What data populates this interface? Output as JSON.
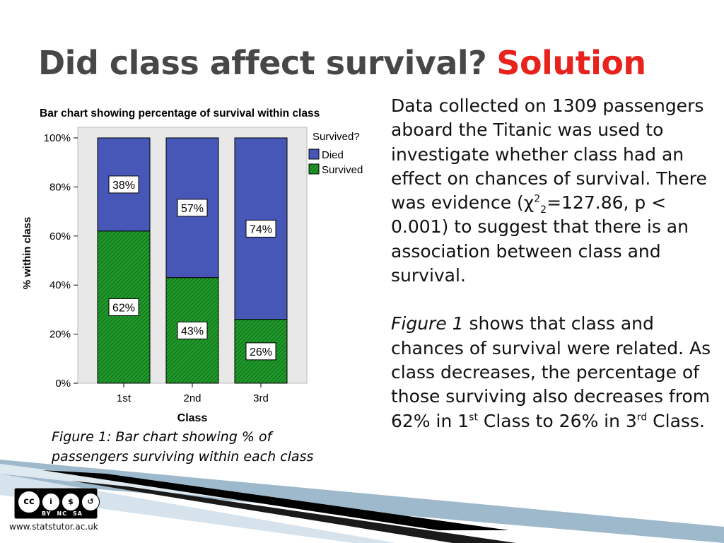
{
  "slide": {
    "title_main": "Did class affect survival?",
    "title_accent": "Solution",
    "accent_color": "#e8221c"
  },
  "chart_data": {
    "type": "bar",
    "stacked": true,
    "title": "Bar chart showing percentage of survival within class",
    "xlabel": "Class",
    "ylabel": "% within class",
    "categories": [
      "1st",
      "2nd",
      "3rd"
    ],
    "yticks": [
      "0%",
      "20%",
      "40%",
      "60%",
      "80%",
      "100%"
    ],
    "ylim": [
      0,
      100
    ],
    "legend_title": "Survived?",
    "legend_position": "top-right",
    "series": [
      {
        "name": "Survived",
        "values": [
          62,
          43,
          26
        ],
        "labels": [
          "62%",
          "43%",
          "26%"
        ],
        "color": "#1f9a2a"
      },
      {
        "name": "Died",
        "values": [
          38,
          57,
          74
        ],
        "labels": [
          "38%",
          "57%",
          "74%"
        ],
        "color": "#4757b8"
      }
    ],
    "grid": false
  },
  "caption": {
    "line1": "Figure 1: Bar chart showing % of",
    "line2": "passengers  surviving within each class"
  },
  "body": {
    "p1_before": "Data collected on 1309 passengers aboard the Titanic was used to investigate whether class had an effect on chances of survival. There was evidence (χ",
    "p1_sup": "2",
    "p1_sub": "2",
    "p1_after": "=127.86, p < 0.001) to suggest that there is an association between class and survival.",
    "p2_italic": "Figure 1",
    "p2_text1": " shows that class and chances of survival were related. As class decreases, the percentage of those surviving also decreases from 62% in 1",
    "p2_sup1": "st",
    "p2_text2": " Class to 26% in 3",
    "p2_sup2": "rd",
    "p2_text3": " Class."
  },
  "footer": {
    "license_icons": [
      "cc-icon",
      "by-icon",
      "nc-icon",
      "sa-icon"
    ],
    "license_labels": [
      "BY",
      "NC",
      "SA"
    ],
    "url": "www.statstutor.ac.uk"
  }
}
